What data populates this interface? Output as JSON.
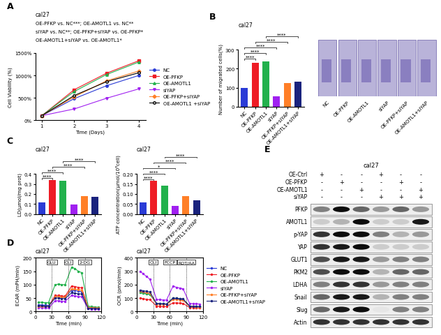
{
  "chart_data": [
    {
      "panel": "A",
      "type": "line",
      "title": "cal27",
      "annotations": [
        "OE-PFKP vs. NC***; OE-AMOTL1 vs. NC**",
        "siYAP vs. NC**; OE-PFKP+siYAP vs. OE-PFKP*",
        "OE-AMOTL1+siYAP vs. OE-AMOTL1*"
      ],
      "x_label": "Time (Days)",
      "y_label": "Cell Viability (%)",
      "x": [
        1,
        2,
        3,
        4
      ],
      "xlim": [
        0.8,
        4.2
      ],
      "xticks": [
        1,
        2,
        3,
        4
      ],
      "ylim": [
        0,
        1500
      ],
      "yticks": [
        {
          "value": 0,
          "label": "0%"
        },
        {
          "value": 500,
          "label": "500%"
        },
        {
          "value": 1000,
          "label": "1000%"
        },
        {
          "value": 1500,
          "label": "1500%"
        }
      ],
      "legend": "right",
      "series": [
        {
          "name": "NC",
          "color": "#2a3bd6",
          "marker": "circle",
          "line_style": "solid",
          "values": [
            100,
            480,
            770,
            1000
          ]
        },
        {
          "name": "OE-PFKP",
          "color": "#ee1c25",
          "marker": "square",
          "line_style": "solid",
          "values": [
            100,
            680,
            1050,
            1330
          ]
        },
        {
          "name": "OE-AMOTL1",
          "color": "#22b14c",
          "marker": "triangle_up",
          "line_style": "solid",
          "values": [
            100,
            640,
            1020,
            1300
          ]
        },
        {
          "name": "siYAP",
          "color": "#a020f0",
          "marker": "triangle_down",
          "line_style": "solid",
          "values": [
            100,
            250,
            490,
            700
          ]
        },
        {
          "name": "OE-PFKP+siYAP",
          "color": "#ff7f27",
          "marker": "diamond",
          "line_style": "solid",
          "values": [
            100,
            520,
            880,
            1100
          ]
        },
        {
          "name": "OE-AMOTL1 +siYAP",
          "color": "#000000",
          "marker": "open_circle",
          "line_style": "solid",
          "values": [
            100,
            550,
            860,
            1060
          ]
        }
      ]
    },
    {
      "panel": "B",
      "type": "bar",
      "title": "cal27",
      "y_label": "Number of migrated cells(%)",
      "categories": [
        "NC",
        "OE-PFKP",
        "OE-AMOTL1",
        "siYAP",
        "OE-PFKP+siYAP",
        "OE-AMOTL1+siYAP"
      ],
      "values": [
        100,
        230,
        240,
        55,
        125,
        130
      ],
      "colors": [
        "#2a3bd6",
        "#ee1c25",
        "#22b14c",
        "#a020f0",
        "#ff7f27",
        "#1a237e"
      ],
      "ylim": [
        0,
        300
      ],
      "yticks": [
        0,
        100,
        200,
        300
      ],
      "significance": [
        {
          "pair": [
            "NC",
            "OE-PFKP"
          ],
          "label": "****"
        },
        {
          "pair": [
            "NC",
            "OE-AMOTL1"
          ],
          "label": "****"
        },
        {
          "pair": [
            "NC",
            "siYAP"
          ],
          "label": "****"
        },
        {
          "pair": [
            "OE-PFKP",
            "OE-PFKP+siYAP"
          ],
          "label": "****"
        },
        {
          "pair": [
            "OE-AMOTL1",
            "OE-AMOTL1+siYAP"
          ],
          "label": "****"
        }
      ],
      "images": [
        "NC",
        "OE-PFKP",
        "OE-AMOTL1",
        "siYAP",
        "OE-PFKP+siYAP",
        "OE-AMOTL1+siYAP"
      ]
    },
    {
      "panel": "C",
      "type": "bar",
      "title": "cal27",
      "y_label": "LD(μmol/mg prot)",
      "categories": [
        "NC",
        "OE-PFKP",
        "OE-AMOTL1",
        "siYAP",
        "OE-PFKP+siYAP",
        "OE-AMOTL1+siYAP"
      ],
      "values": [
        0.12,
        0.34,
        0.33,
        0.095,
        0.18,
        0.17
      ],
      "colors": [
        "#2a3bd6",
        "#ee1c25",
        "#22b14c",
        "#a020f0",
        "#ff7f27",
        "#1a237e"
      ],
      "ylim": [
        0.0,
        0.4
      ],
      "yticks": [
        0.0,
        0.1,
        0.2,
        0.3,
        0.4
      ],
      "significance": [
        {
          "pair": [
            "NC",
            "OE-PFKP"
          ],
          "label": "****"
        },
        {
          "pair": [
            "NC",
            "OE-AMOTL1"
          ],
          "label": "****"
        },
        {
          "pair": [
            "OE-PFKP",
            "OE-PFKP+siYAP"
          ],
          "label": "****"
        },
        {
          "pair": [
            "OE-AMOTL1",
            "OE-AMOTL1+siYAP"
          ],
          "label": "****"
        }
      ]
    },
    {
      "panel": "C",
      "type": "bar",
      "title": "cal27",
      "y_label": "ATP concentration(μmol/10⁶cell)",
      "categories": [
        "NC",
        "OE-PFKP",
        "OE-AMOTL1",
        "siYAP",
        "OE-PFKP+siYAP",
        "OE-AMOTL1+siYAP"
      ],
      "values": [
        0.06,
        0.165,
        0.14,
        0.04,
        0.09,
        0.07
      ],
      "colors": [
        "#2a3bd6",
        "#ee1c25",
        "#22b14c",
        "#a020f0",
        "#ff7f27",
        "#1a237e"
      ],
      "ylim": [
        0.0,
        0.2
      ],
      "yticks": [
        {
          "value": 0.0,
          "label": "0.00"
        },
        {
          "value": 0.05,
          "label": "0.05"
        },
        {
          "value": 0.1,
          "label": "0.10"
        },
        {
          "value": 0.15,
          "label": "0.15"
        },
        {
          "value": 0.2,
          "label": "0.20"
        }
      ],
      "significance": [
        {
          "pair": [
            "NC",
            "OE-PFKP"
          ],
          "label": "****"
        },
        {
          "pair": [
            "NC",
            "OE-AMOTL1"
          ],
          "label": "****"
        },
        {
          "pair": [
            "NC",
            "siYAP"
          ],
          "label": "*"
        },
        {
          "pair": [
            "OE-PFKP",
            "OE-PFKP+siYAP"
          ],
          "label": "****"
        },
        {
          "pair": [
            "OE-AMOTL1",
            "OE-AMOTL1+siYAP"
          ],
          "label": "****"
        }
      ]
    },
    {
      "panel": "D",
      "type": "line",
      "title": "cal27",
      "x_label": "Time (min)",
      "y_label": "ECAR (mPH/min)",
      "x": [
        6,
        12,
        18,
        24,
        36,
        42,
        48,
        54,
        66,
        72,
        78,
        84,
        96,
        102,
        108,
        114
      ],
      "xlim": [
        0,
        120
      ],
      "xticks": [
        0,
        30,
        60,
        90,
        120
      ],
      "ylim": [
        0,
        200
      ],
      "yticks": [
        0,
        50,
        100,
        150,
        200
      ],
      "injections": [
        {
          "x": 30,
          "label": "GLU"
        },
        {
          "x": 60,
          "label": "OLI"
        },
        {
          "x": 90,
          "label": "2-DG"
        }
      ],
      "series": [
        {
          "name": "NC",
          "color": "#2a3bd6",
          "marker": "circle",
          "line_style": "solid",
          "values": [
            25,
            24,
            23,
            22,
            55,
            55,
            54,
            53,
            80,
            78,
            76,
            74,
            15,
            14,
            13,
            13
          ]
        },
        {
          "name": "OE-PFKP",
          "color": "#ee1c25",
          "marker": "circle",
          "line_style": "solid",
          "values": [
            20,
            19,
            18,
            18,
            60,
            60,
            58,
            57,
            95,
            93,
            90,
            88,
            15,
            14,
            13,
            12
          ]
        },
        {
          "name": "OE-AMOTL1",
          "color": "#22b14c",
          "marker": "circle",
          "line_style": "solid",
          "values": [
            35,
            34,
            33,
            33,
            100,
            102,
            100,
            100,
            165,
            160,
            150,
            145,
            20,
            18,
            17,
            16
          ]
        },
        {
          "name": "siYAP",
          "color": "#a020f0",
          "marker": "circle",
          "line_style": "solid",
          "values": [
            15,
            14,
            13,
            13,
            40,
            40,
            38,
            38,
            60,
            58,
            56,
            55,
            10,
            9,
            9,
            8
          ]
        },
        {
          "name": "OE-PFKP+siYAP",
          "color": "#ff7f27",
          "marker": "circle",
          "line_style": "solid",
          "values": [
            20,
            19,
            18,
            18,
            55,
            55,
            54,
            53,
            85,
            83,
            82,
            80,
            15,
            14,
            13,
            13
          ]
        },
        {
          "name": "OE-AMOTL1+siYAP",
          "color": "#1a237e",
          "marker": "circle",
          "line_style": "solid",
          "values": [
            22,
            21,
            20,
            20,
            50,
            50,
            48,
            48,
            70,
            68,
            66,
            65,
            12,
            11,
            11,
            10
          ]
        }
      ]
    },
    {
      "panel": "D",
      "type": "line",
      "title": "cal27",
      "x_label": "Time (min)",
      "y_label": "OCR (pmol/min)",
      "x": [
        6,
        12,
        18,
        24,
        36,
        42,
        48,
        54,
        66,
        72,
        78,
        84,
        96,
        102,
        108,
        114
      ],
      "xlim": [
        0,
        120
      ],
      "xticks": [
        0,
        30,
        60,
        90,
        120
      ],
      "ylim": [
        0,
        400
      ],
      "yticks": [
        0,
        100,
        200,
        300,
        400
      ],
      "injections": [
        {
          "x": 30,
          "label": "OLI"
        },
        {
          "x": 60,
          "label": "FCCP"
        },
        {
          "x": 90,
          "label": "ROT/AA"
        }
      ],
      "legend": "right",
      "series": [
        {
          "name": "NC",
          "color": "#2a3bd6",
          "marker": "circle",
          "line_style": "solid",
          "values": [
            150,
            140,
            135,
            130,
            60,
            58,
            57,
            56,
            95,
            95,
            90,
            88,
            40,
            38,
            37,
            36
          ]
        },
        {
          "name": "OE-PFKP",
          "color": "#ee1c25",
          "marker": "circle",
          "line_style": "solid",
          "values": [
            100,
            95,
            90,
            88,
            40,
            38,
            37,
            36,
            65,
            63,
            62,
            60,
            30,
            28,
            27,
            26
          ]
        },
        {
          "name": "OE-AMOTL1",
          "color": "#22b14c",
          "marker": "circle",
          "line_style": "solid",
          "values": [
            140,
            135,
            130,
            125,
            60,
            58,
            57,
            56,
            100,
            98,
            95,
            92,
            40,
            38,
            37,
            36
          ]
        },
        {
          "name": "siYAP",
          "color": "#a020f0",
          "marker": "circle",
          "line_style": "solid",
          "values": [
            300,
            280,
            260,
            240,
            90,
            88,
            86,
            85,
            190,
            180,
            175,
            170,
            60,
            58,
            57,
            56
          ]
        },
        {
          "name": "OE-PFKP+siYAP",
          "color": "#ff7f27",
          "marker": "circle",
          "line_style": "solid",
          "values": [
            150,
            145,
            140,
            135,
            55,
            54,
            53,
            52,
            90,
            88,
            86,
            84,
            38,
            36,
            35,
            34
          ]
        },
        {
          "name": "OE-AMOTL1+siYAP",
          "color": "#1a237e",
          "marker": "circle",
          "line_style": "solid",
          "values": [
            160,
            155,
            150,
            145,
            60,
            58,
            57,
            56,
            100,
            98,
            96,
            94,
            40,
            38,
            37,
            36
          ]
        }
      ]
    },
    {
      "panel": "E",
      "type": "blot",
      "title": "cal27",
      "conditions": [
        {
          "name": "OE-Ctrl",
          "marks": [
            "+",
            "-",
            "-",
            "+",
            "-",
            "-"
          ]
        },
        {
          "name": "OE-PFKP",
          "marks": [
            "-",
            "+",
            "-",
            "-",
            "+",
            "-"
          ]
        },
        {
          "name": "OE-AMOTL1",
          "marks": [
            "-",
            "-",
            "+",
            "-",
            "-",
            "+"
          ]
        },
        {
          "name": "siYAP",
          "marks": [
            "-",
            "-",
            "-",
            "+",
            "+",
            "+"
          ]
        }
      ],
      "proteins": [
        {
          "name": "PFKP",
          "intensity": [
            0.5,
            0.95,
            0.6,
            0.4,
            0.6,
            0.4
          ]
        },
        {
          "name": "AMOTL1",
          "intensity": [
            0.2,
            0.3,
            0.95,
            0.2,
            0.2,
            0.9
          ]
        },
        {
          "name": "p-YAP",
          "intensity": [
            0.8,
            0.95,
            0.95,
            0.5,
            0.3,
            0.4
          ]
        },
        {
          "name": "YAP",
          "intensity": [
            0.8,
            0.9,
            0.95,
            0.2,
            0.2,
            0.2
          ]
        },
        {
          "name": "GLUT1",
          "intensity": [
            0.7,
            0.9,
            0.9,
            0.4,
            0.5,
            0.5
          ]
        },
        {
          "name": "PKM2",
          "intensity": [
            0.7,
            0.95,
            0.95,
            0.3,
            0.6,
            0.6
          ]
        },
        {
          "name": "LDHA",
          "intensity": [
            0.5,
            0.8,
            0.8,
            0.4,
            0.5,
            0.5
          ]
        },
        {
          "name": "Snail",
          "intensity": [
            0.6,
            0.9,
            0.9,
            0.3,
            0.5,
            0.5
          ]
        },
        {
          "name": "Slug",
          "intensity": [
            0.6,
            0.9,
            0.95,
            0.1,
            0.5,
            0.5
          ]
        },
        {
          "name": "Actin",
          "intensity": [
            0.8,
            0.8,
            0.8,
            0.8,
            0.8,
            0.8
          ]
        }
      ]
    }
  ]
}
